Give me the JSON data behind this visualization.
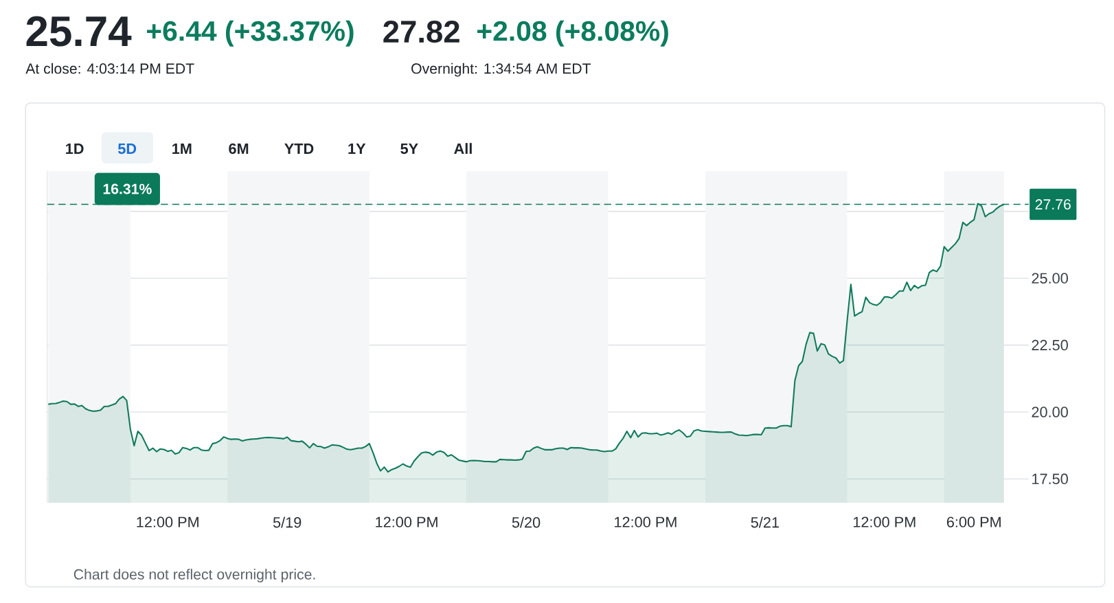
{
  "chart_data": {
    "type": "area",
    "color": "#0f7a5c",
    "categories": [
      null,
      null,
      null,
      null,
      null,
      null,
      null,
      null,
      null,
      null,
      null,
      null,
      null,
      null,
      null,
      null,
      null,
      null,
      null,
      null,
      null,
      null,
      null,
      null,
      null,
      null,
      null,
      null,
      null,
      null,
      null,
      null,
      "12:00 PM",
      null,
      null,
      null,
      null,
      null,
      null,
      null,
      null,
      null,
      null,
      null,
      null,
      null,
      null,
      null,
      null,
      null,
      null,
      null,
      null,
      null,
      null,
      null,
      null,
      null,
      null,
      null,
      null,
      null,
      null,
      null,
      "5/19",
      null,
      null,
      null,
      null,
      null,
      null,
      null,
      null,
      null,
      null,
      null,
      null,
      null,
      null,
      null,
      null,
      null,
      null,
      null,
      null,
      null,
      null,
      null,
      null,
      null,
      null,
      null,
      null,
      null,
      null,
      null,
      "12:00 PM",
      null,
      null,
      null,
      null,
      null,
      null,
      null,
      null,
      null,
      null,
      null,
      null,
      null,
      null,
      null,
      null,
      null,
      null,
      null,
      null,
      null,
      null,
      null,
      null,
      null,
      null,
      null,
      null,
      null,
      null,
      null,
      "5/20",
      null,
      null,
      null,
      null,
      null,
      null,
      null,
      null,
      null,
      null,
      null,
      null,
      null,
      null,
      null,
      null,
      null,
      null,
      null,
      null,
      null,
      null,
      null,
      null,
      null,
      null,
      null,
      null,
      null,
      null,
      null,
      "12:00 PM",
      null,
      null,
      null,
      null,
      null,
      null,
      null,
      null,
      null,
      null,
      null,
      null,
      null,
      null,
      null,
      null,
      null,
      null,
      null,
      null,
      null,
      null,
      null,
      null,
      null,
      null,
      null,
      null,
      null,
      null,
      null,
      "5/21",
      null,
      null,
      null,
      null,
      null,
      null,
      null,
      null,
      null,
      null,
      null,
      null,
      null,
      null,
      null,
      null,
      null,
      null,
      null,
      null,
      null,
      null,
      null,
      null,
      null,
      null,
      null,
      null,
      null,
      null,
      null,
      "12:00 PM",
      null,
      null,
      null,
      null,
      null,
      null,
      null,
      null,
      null,
      null,
      null,
      null,
      null,
      null,
      null,
      null,
      null,
      null,
      null,
      null,
      null,
      null,
      null,
      "6:00 PM",
      null,
      null,
      null,
      null,
      null,
      null,
      null,
      null
    ],
    "values": [
      20.29,
      20.31,
      20.32,
      20.36,
      20.41,
      20.39,
      20.29,
      20.3,
      20.21,
      20.24,
      20.12,
      20.06,
      20.03,
      20.04,
      20.07,
      20.21,
      20.21,
      20.26,
      20.31,
      20.48,
      20.58,
      20.43,
      19.35,
      18.74,
      19.28,
      19.13,
      18.84,
      18.56,
      18.65,
      18.52,
      18.62,
      18.6,
      18.53,
      18.57,
      18.43,
      18.48,
      18.67,
      18.64,
      18.58,
      18.67,
      18.67,
      18.58,
      18.56,
      18.57,
      18.82,
      18.85,
      18.93,
      19.07,
      19.01,
      18.98,
      18.99,
      18.98,
      18.92,
      18.96,
      18.98,
      18.99,
      19.0,
      19.02,
      19.04,
      19.05,
      19.04,
      19.03,
      19.02,
      19.0,
      19.06,
      18.93,
      18.91,
      18.89,
      18.91,
      18.8,
      18.66,
      18.82,
      18.72,
      18.71,
      18.65,
      18.7,
      18.77,
      18.76,
      18.74,
      18.68,
      18.61,
      18.59,
      18.62,
      18.65,
      18.65,
      18.71,
      18.82,
      18.48,
      18.08,
      17.8,
      17.94,
      17.76,
      17.85,
      17.9,
      17.97,
      18.06,
      17.98,
      17.94,
      18.17,
      18.33,
      18.47,
      18.5,
      18.48,
      18.39,
      18.5,
      18.54,
      18.49,
      18.35,
      18.4,
      18.3,
      18.2,
      18.17,
      18.14,
      18.18,
      18.19,
      18.18,
      18.17,
      18.15,
      18.15,
      18.14,
      18.14,
      18.23,
      18.22,
      18.21,
      18.21,
      18.2,
      18.21,
      18.24,
      18.53,
      18.54,
      18.65,
      18.7,
      18.64,
      18.59,
      18.59,
      18.59,
      18.63,
      18.65,
      18.65,
      18.6,
      18.67,
      18.66,
      18.66,
      18.65,
      18.62,
      18.59,
      18.58,
      18.58,
      18.54,
      18.52,
      18.54,
      18.54,
      18.62,
      18.84,
      19.02,
      19.28,
      19.04,
      19.31,
      19.07,
      19.21,
      19.22,
      19.19,
      19.19,
      19.21,
      19.14,
      19.17,
      19.22,
      19.17,
      19.27,
      19.33,
      19.22,
      19.07,
      19.1,
      19.3,
      19.34,
      19.29,
      19.28,
      19.27,
      19.26,
      19.25,
      19.24,
      19.24,
      19.25,
      19.25,
      19.18,
      19.14,
      19.13,
      19.12,
      19.14,
      19.16,
      19.16,
      19.15,
      19.4,
      19.41,
      19.4,
      19.4,
      19.47,
      19.49,
      19.49,
      19.45,
      21.17,
      21.73,
      21.89,
      22.53,
      22.97,
      22.94,
      22.28,
      22.55,
      22.51,
      22.17,
      22.08,
      22.02,
      21.83,
      21.92,
      23.4,
      24.77,
      23.59,
      23.68,
      23.75,
      24.29,
      24.09,
      24.02,
      23.99,
      24.1,
      24.3,
      24.3,
      24.26,
      24.38,
      24.52,
      24.52,
      24.85,
      24.54,
      24.73,
      24.63,
      24.72,
      24.74,
      25.21,
      25.31,
      25.25,
      25.45,
      26.18,
      26.01,
      26.15,
      26.29,
      26.49,
      27.09,
      26.97,
      27.09,
      27.19,
      27.79,
      27.7,
      27.3,
      27.41,
      27.47,
      27.6,
      27.7,
      27.76
    ],
    "ylim": [
      16.6,
      29.0
    ],
    "yticks": [
      {
        "value": 17.5,
        "label": "17.50"
      },
      {
        "value": 20,
        "label": "20.00"
      },
      {
        "value": 22.5,
        "label": "22.50"
      },
      {
        "value": 25,
        "label": "25.00"
      },
      {
        "value": 27.5,
        "label": null
      }
    ],
    "grid": "y",
    "ref_lines": [
      {
        "axis": "y",
        "value": 27.76,
        "label": "27.76",
        "color": "#0a7a5a",
        "line_style": "dashed"
      }
    ],
    "annotations": [
      "25.74",
      "+6.44 (+33.37%)",
      "27.82",
      "+2.08 (+8.08%)",
      "At close: 4:03:14 PM EDT",
      "Overnight: 1:34:54 AM EDT",
      "1D",
      "5D",
      "1M",
      "6M",
      "YTD",
      "1Y",
      "5Y",
      "All",
      "16.31%",
      "Chart does not reflect overnight price."
    ]
  }
}
